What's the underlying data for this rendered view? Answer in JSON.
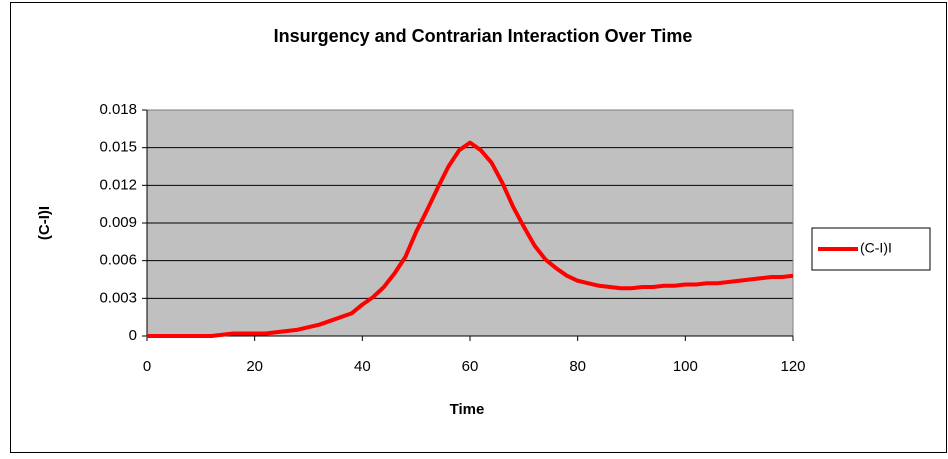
{
  "chart_data": {
    "type": "line",
    "title": "Insurgency and Contrarian Interaction Over Time",
    "x_label": "Time",
    "y_label": "(C-I)I",
    "x": [
      0,
      2,
      4,
      6,
      8,
      10,
      12,
      14,
      16,
      18,
      20,
      22,
      24,
      26,
      28,
      30,
      32,
      34,
      36,
      38,
      40,
      42,
      44,
      46,
      48,
      50,
      52,
      54,
      56,
      58,
      60,
      62,
      64,
      66,
      68,
      70,
      72,
      74,
      76,
      78,
      80,
      82,
      84,
      86,
      88,
      90,
      92,
      94,
      96,
      98,
      100,
      102,
      104,
      106,
      108,
      110,
      112,
      114,
      116,
      118,
      120
    ],
    "series": [
      {
        "name": "(C-I)I",
        "color": "#ff0000",
        "values": [
          0,
          0,
          0,
          0,
          0,
          0,
          0,
          0.0001,
          0.0002,
          0.0002,
          0.0002,
          0.0002,
          0.0003,
          0.0004,
          0.0005,
          0.0007,
          0.0009,
          0.0012,
          0.0015,
          0.0018,
          0.0025,
          0.0031,
          0.0039,
          0.005,
          0.0063,
          0.0083,
          0.01,
          0.0118,
          0.0135,
          0.0148,
          0.0154,
          0.0148,
          0.0138,
          0.0122,
          0.0103,
          0.0087,
          0.0072,
          0.0061,
          0.0054,
          0.0048,
          0.0044,
          0.0042,
          0.004,
          0.0039,
          0.0038,
          0.0038,
          0.0039,
          0.0039,
          0.004,
          0.004,
          0.0041,
          0.0041,
          0.0042,
          0.0042,
          0.0043,
          0.0044,
          0.0045,
          0.0046,
          0.0047,
          0.0047,
          0.0048
        ]
      }
    ],
    "xlim": [
      0,
      120
    ],
    "xticks": [
      0,
      20,
      40,
      60,
      80,
      100,
      120
    ],
    "ylim": [
      0,
      0.018
    ],
    "yticks": [
      0,
      0.003,
      0.006,
      0.009,
      0.012,
      0.015,
      0.018
    ],
    "grid": true,
    "plot_background": "#c0c0c0",
    "legend": "right"
  }
}
